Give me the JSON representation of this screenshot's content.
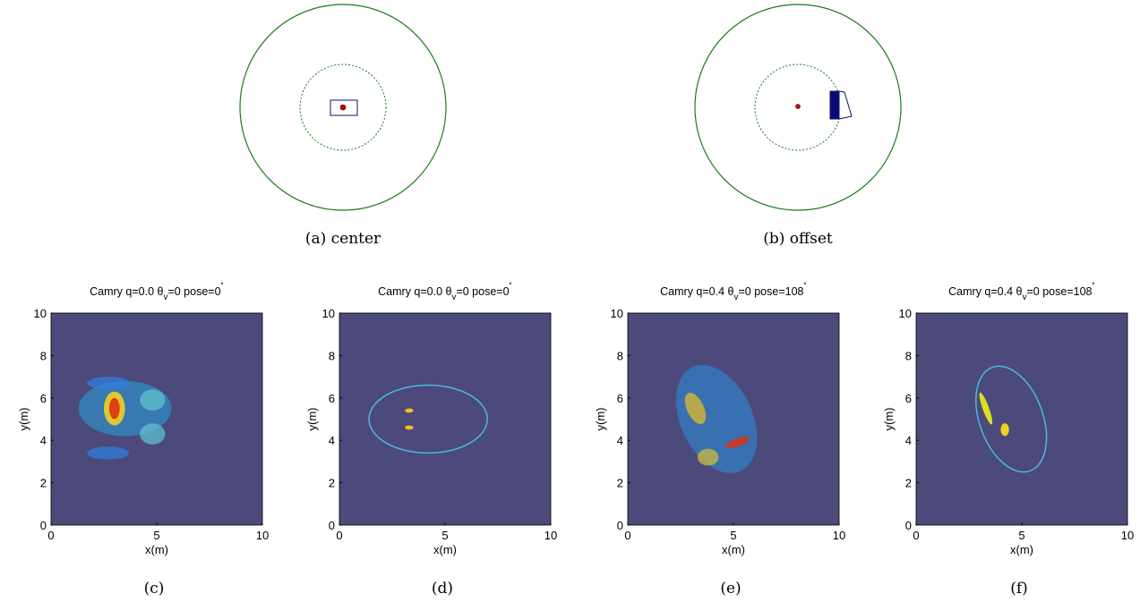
{
  "diagrams": [
    {
      "caption": "(a)  center"
    },
    {
      "caption": "(b)  offset"
    }
  ],
  "panels": [
    {
      "title": [
        "Camry q=0.0 θ",
        "v",
        "=0 pose=0",
        "˚"
      ],
      "xlabel": "x(m)",
      "ylabel": "y(m)",
      "xlim": [
        0,
        10
      ],
      "ylim": [
        0,
        10
      ],
      "xticks": [
        0,
        5,
        10
      ],
      "yticks": [
        0,
        2,
        4,
        6,
        8,
        10
      ],
      "caption": "(c)"
    },
    {
      "title": [
        "Camry q=0.0 θ",
        "v",
        "=0 pose=0",
        "˚"
      ],
      "xlabel": "x(m)",
      "ylabel": "y(m)",
      "xlim": [
        0,
        10
      ],
      "ylim": [
        0,
        10
      ],
      "xticks": [
        0,
        5,
        10
      ],
      "yticks": [
        0,
        2,
        4,
        6,
        8,
        10
      ],
      "caption": "(d)"
    },
    {
      "title": [
        "Camry q=0.4 θ",
        "v",
        "=0 pose=108",
        "˚"
      ],
      "xlabel": "x(m)",
      "ylabel": "y(m)",
      "xlim": [
        0,
        10
      ],
      "ylim": [
        0,
        10
      ],
      "xticks": [
        0,
        5,
        10
      ],
      "yticks": [
        0,
        2,
        4,
        6,
        8,
        10
      ],
      "caption": "(e)"
    },
    {
      "title": [
        "Camry q=0.4 θ",
        "v",
        "=0 pose=108",
        "˚"
      ],
      "xlabel": "x(m)",
      "ylabel": "y(m)",
      "xlim": [
        0,
        10
      ],
      "ylim": [
        0,
        10
      ],
      "xticks": [
        0,
        5,
        10
      ],
      "yticks": [
        0,
        2,
        4,
        6,
        8,
        10
      ],
      "caption": "(f)"
    }
  ]
}
